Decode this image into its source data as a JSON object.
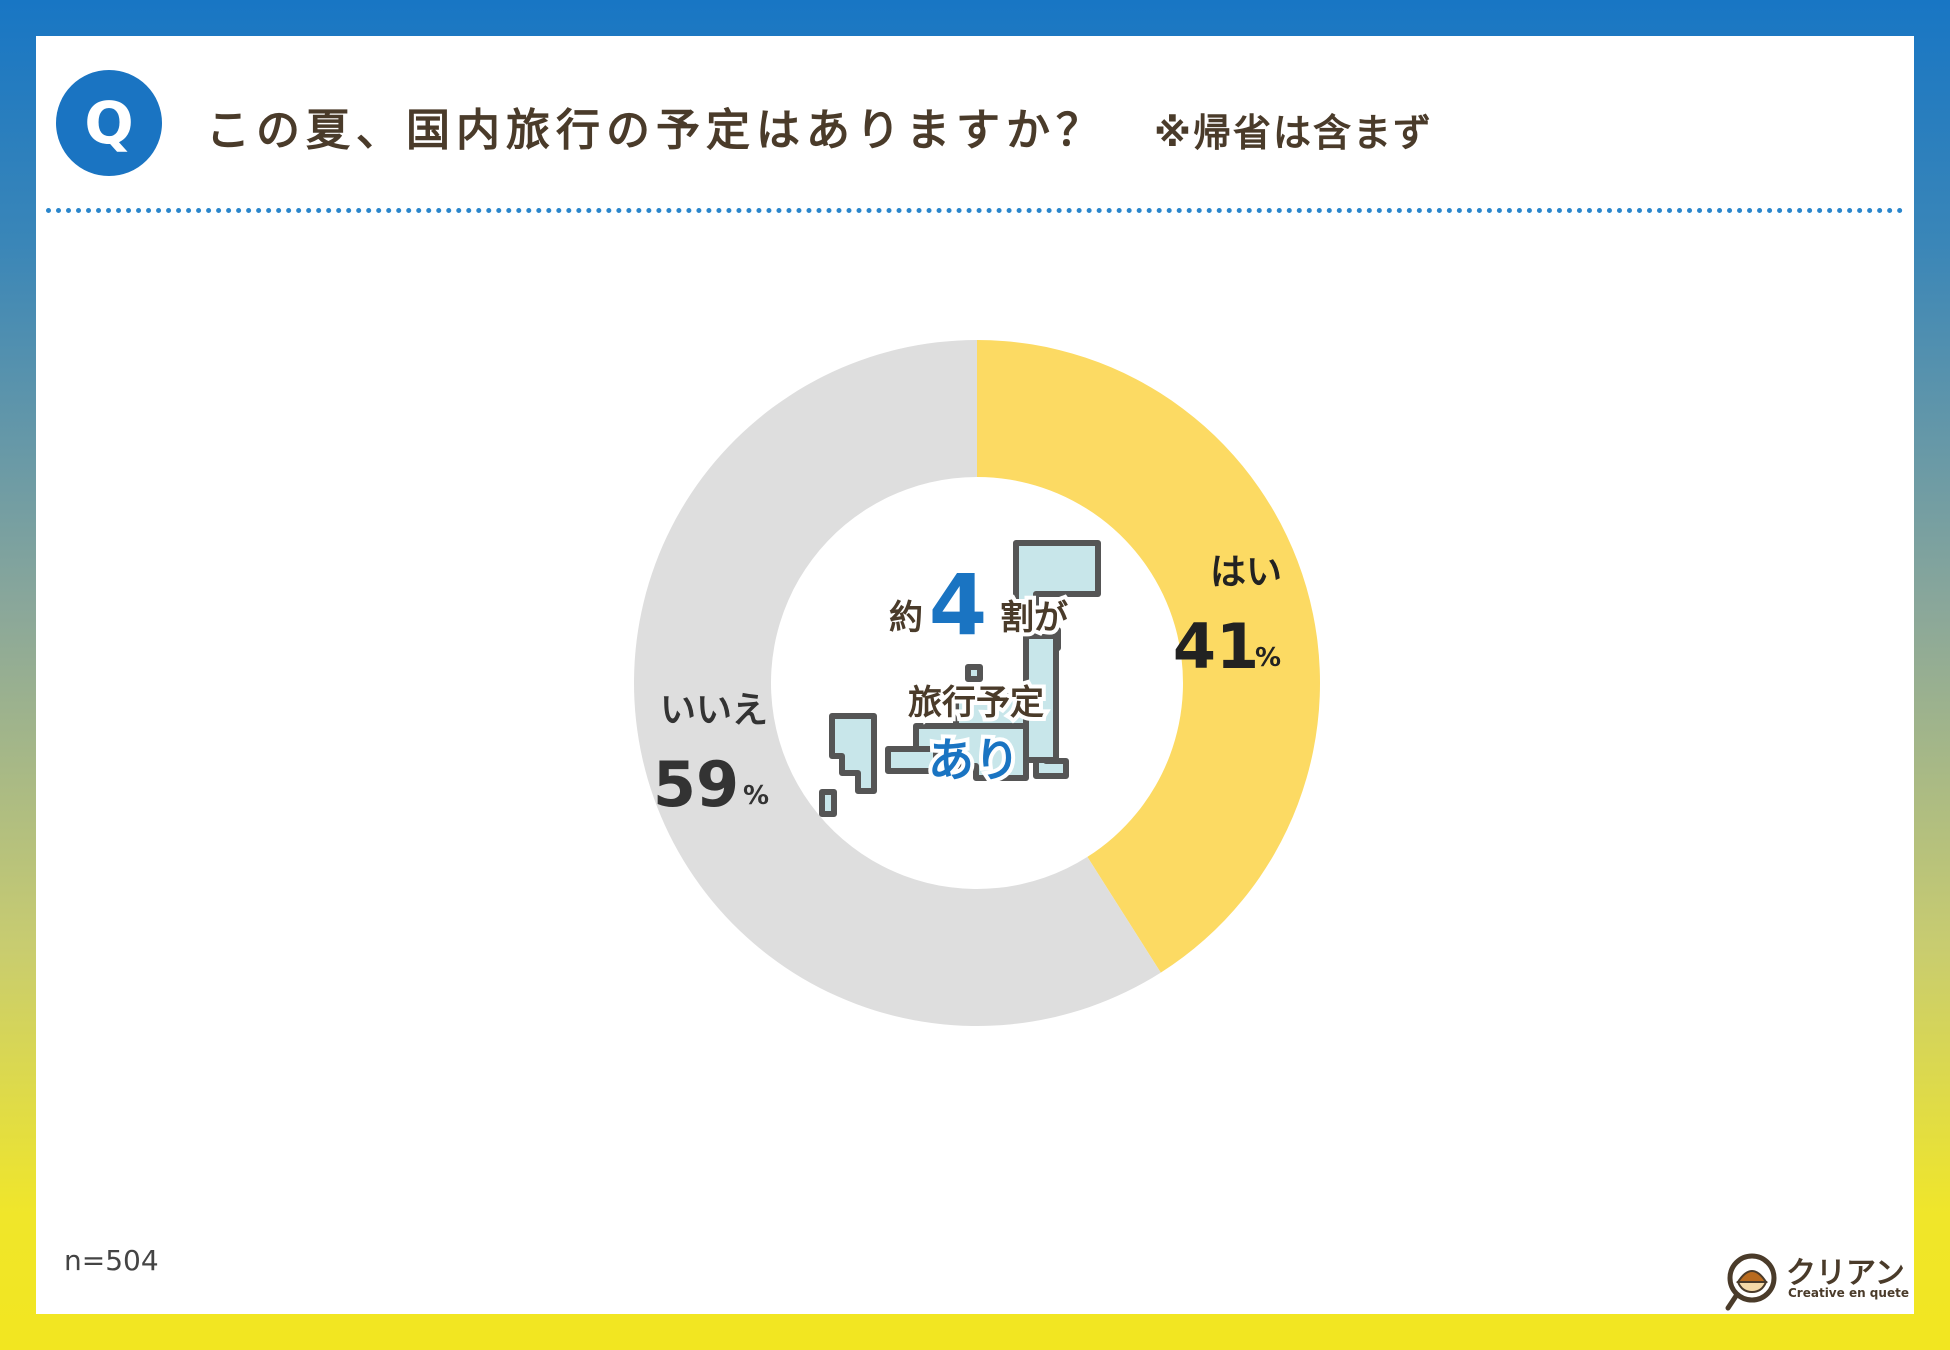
{
  "header": {
    "badge": "Q",
    "question": "この夏、国内旅行の予定はありますか？",
    "note": "※帰省は含まず"
  },
  "colors": {
    "yes": "#fcda63",
    "no": "#dedede",
    "accent": "#1a74c2",
    "text": "#4a3b2a"
  },
  "chart_data": {
    "type": "pie",
    "style": "donut",
    "categories": [
      "はい",
      "いいえ"
    ],
    "values": [
      41,
      59
    ],
    "unit": "%",
    "title": "",
    "colors": [
      "#fcda63",
      "#dedede"
    ]
  },
  "labels": {
    "yes_name": "はい",
    "yes_value": "41",
    "no_name": "いいえ",
    "no_value": "59",
    "percent": "%"
  },
  "center": {
    "prefix": "約",
    "number": "4",
    "suffix": "割が",
    "line2": "旅行予定",
    "line3": "あり",
    "icon": "japan-map-icon"
  },
  "footer": {
    "sample_size": "n=504",
    "logo_name": "クリアン",
    "logo_sub": "Creative en quete",
    "logo_icon": "magnifier-chestnut-icon"
  }
}
